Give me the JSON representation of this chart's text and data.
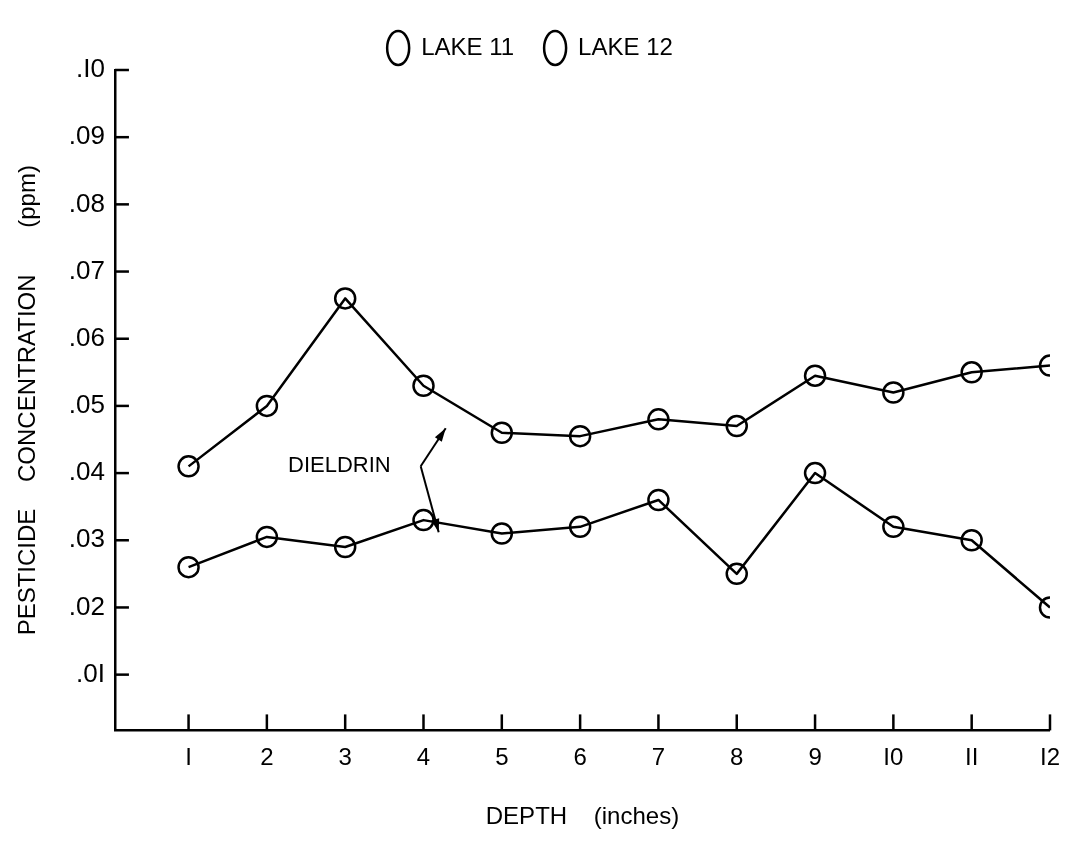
{
  "chart_data": {
    "type": "line",
    "xlabel": "DEPTH    (inches)",
    "ylabel": "PESTICIDE    CONCENTRATION       (ppm)",
    "x": [
      1,
      2,
      3,
      4,
      5,
      6,
      7,
      8,
      9,
      10,
      11,
      12
    ],
    "series": [
      {
        "name": "LAKE 11",
        "color": "#000000",
        "values": [
          0.041,
          0.05,
          0.066,
          0.053,
          0.046,
          0.0455,
          0.048,
          0.047,
          0.0545,
          0.052,
          0.055,
          0.056
        ]
      },
      {
        "name": "LAKE 12",
        "color": "#000000",
        "values": [
          0.026,
          0.0305,
          0.029,
          0.033,
          0.031,
          0.032,
          0.036,
          0.025,
          0.04,
          0.032,
          0.03,
          0.02
        ]
      }
    ],
    "xlim": [
      0.06,
      12
    ],
    "xticks": [
      {
        "value": 1,
        "label": "I"
      },
      2,
      3,
      4,
      5,
      6,
      7,
      8,
      9,
      {
        "value": 10,
        "label": "I0"
      },
      {
        "value": 11,
        "label": "II"
      },
      {
        "value": 12,
        "label": "I2"
      }
    ],
    "ylim": [
      0.0017,
      0.1
    ],
    "yticks": [
      {
        "value": 0.01,
        "label": ".0I"
      },
      {
        "value": 0.02,
        "label": ".02"
      },
      {
        "value": 0.03,
        "label": ".03"
      },
      {
        "value": 0.04,
        "label": ".04"
      },
      {
        "value": 0.05,
        "label": ".05"
      },
      {
        "value": 0.06,
        "label": ".06"
      },
      {
        "value": 0.07,
        "label": ".07"
      },
      {
        "value": 0.08,
        "label": ".08"
      },
      {
        "value": 0.09,
        "label": ".09"
      },
      {
        "value": 0.1,
        "label": ".I0"
      }
    ],
    "annotations": [
      "DIELDRIN"
    ],
    "legend": "top",
    "marker": "circle",
    "line_style": "solid",
    "grid": false
  }
}
